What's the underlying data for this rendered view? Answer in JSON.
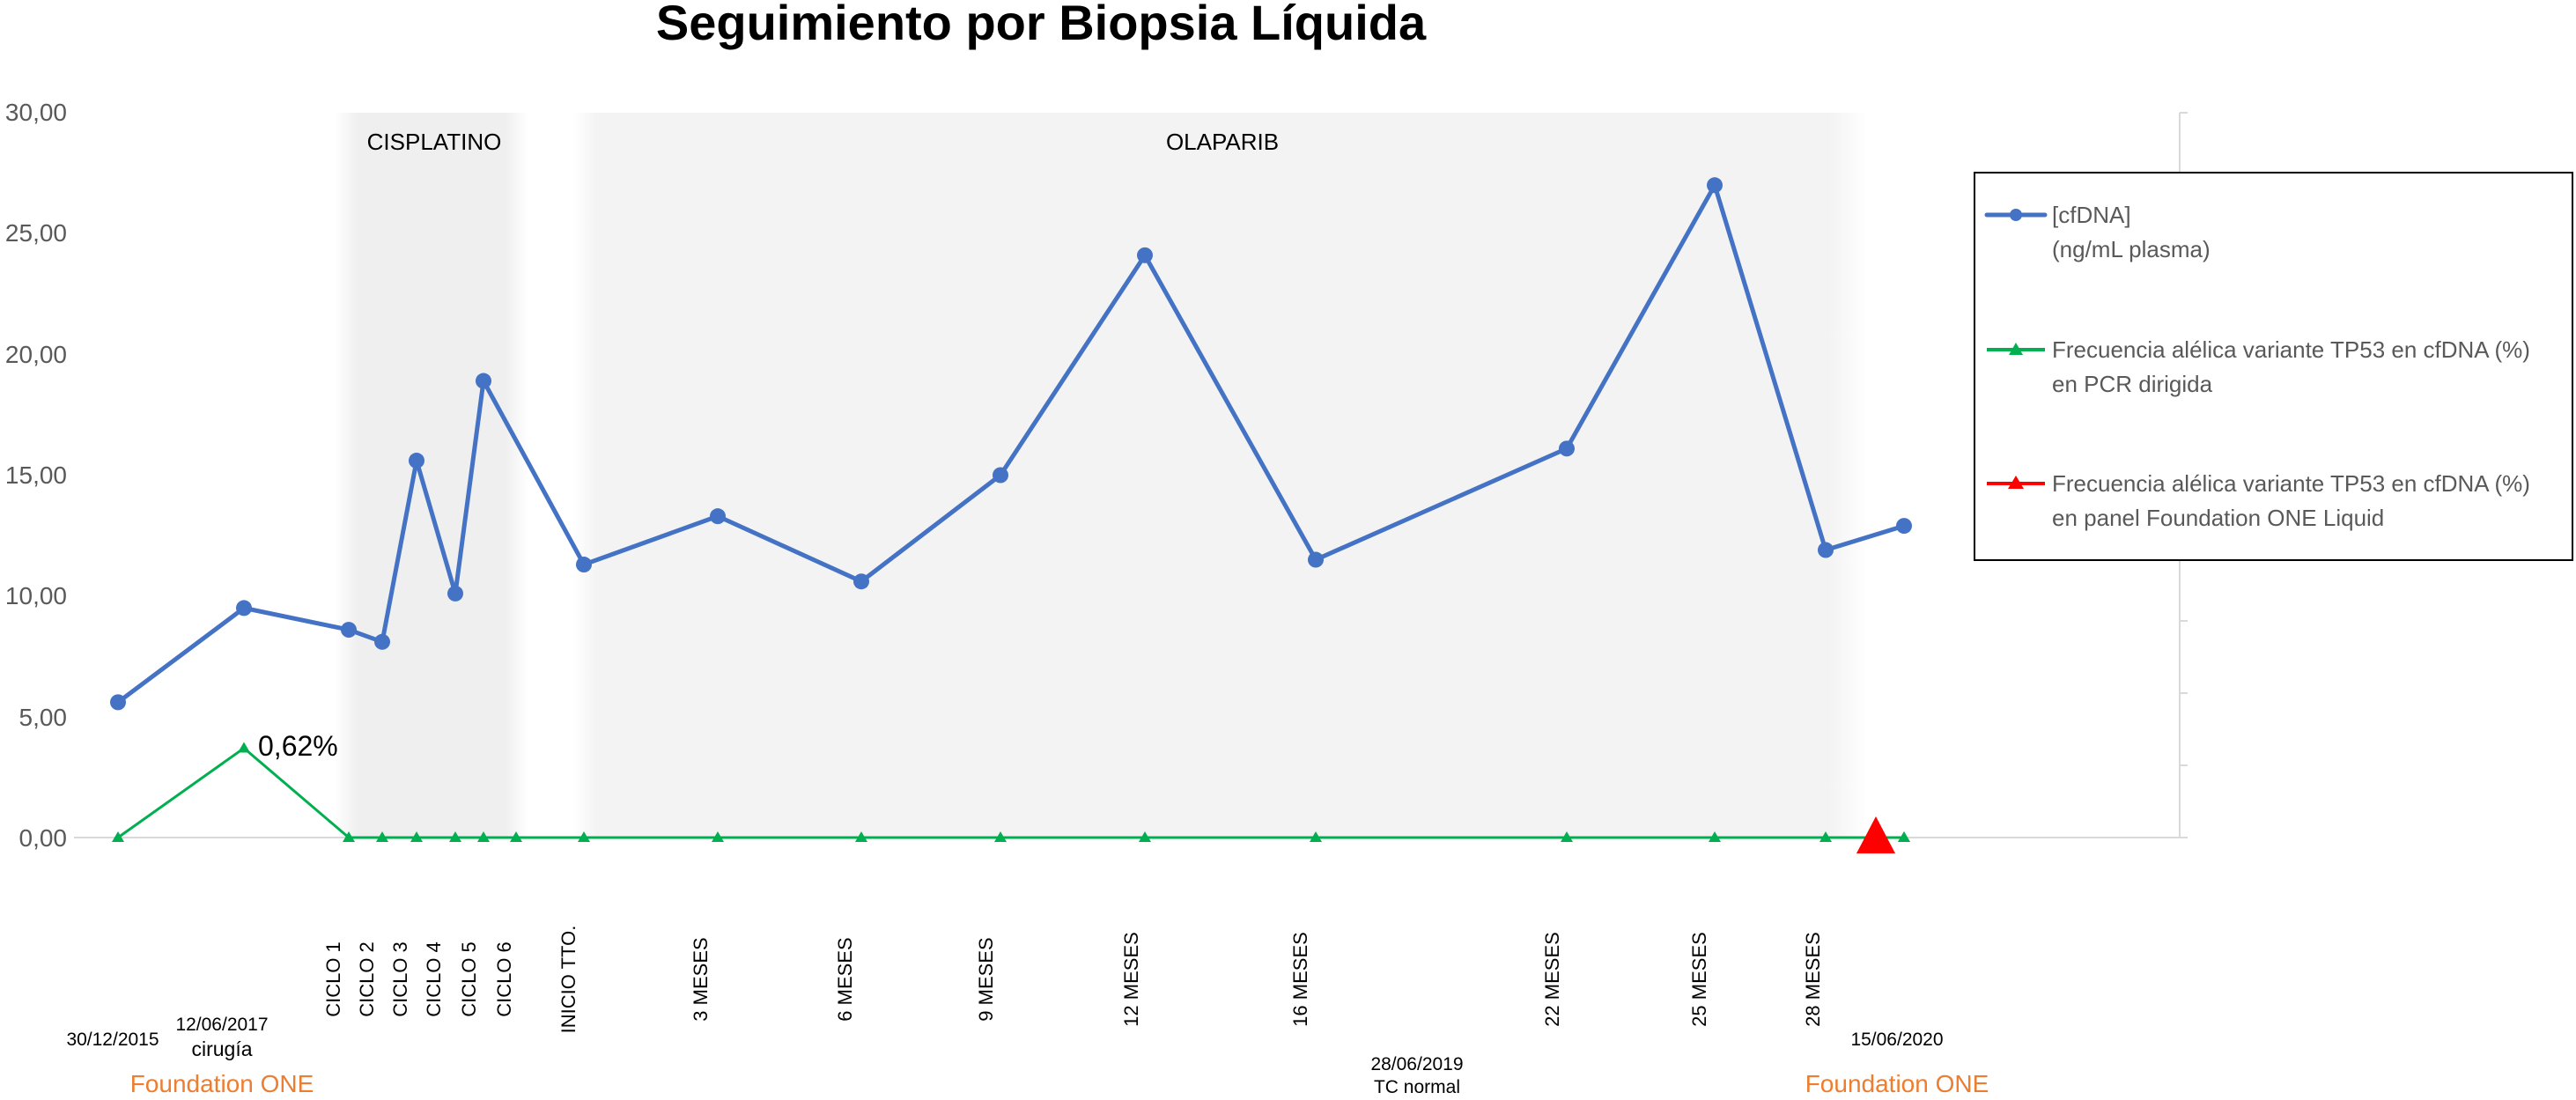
{
  "chart_data": {
    "type": "line",
    "title": "Seguimiento por Biopsia Líquida",
    "y_ticks": [
      "30,00",
      "25,00",
      "20,00",
      "15,00",
      "10,00",
      "5,00",
      "0,00"
    ],
    "ylim": [
      0,
      30
    ],
    "grid": false,
    "legend_position": "right",
    "shaded_regions": [
      {
        "label": "CISPLATINO"
      },
      {
        "label": "OLAPARIB"
      }
    ],
    "x_labels_vertical": [
      "CICLO 1",
      "CICLO 2",
      "CICLO 3",
      "CICLO 4",
      "CICLO 5",
      "CICLO 6",
      "INICIO TTO.",
      "3 MESES",
      "6 MESES",
      "9 MESES",
      "12 MESES",
      "16 MESES",
      "22 MESES",
      "25 MESES",
      "28 MESES"
    ],
    "x_labels_horizontal": [
      {
        "lines": [
          "30/12/2015"
        ]
      },
      {
        "lines": [
          "12/06/2017",
          "cirugía"
        ]
      },
      {
        "lines": [
          "28/06/2019",
          "TC normal"
        ]
      },
      {
        "lines": [
          "15/06/2020"
        ]
      }
    ],
    "foundation_labels": [
      "Foundation ONE",
      "Foundation ONE"
    ],
    "series": [
      {
        "name": "[cfDNA] (ng/mL plasma)",
        "legend_lines": [
          "[cfDNA]",
          "(ng/mL plasma)"
        ],
        "color": "#4472c4",
        "marker": "circle",
        "values": [
          5.6,
          9.5,
          8.6,
          8.1,
          15.6,
          10.1,
          18.9,
          11.3,
          13.3,
          10.6,
          15.0,
          24.1,
          11.5,
          16.1,
          27.0,
          11.9,
          12.9
        ]
      },
      {
        "name": "Frecuencia alélica variante TP53 en cfDNA (%) en PCR dirigida",
        "legend_lines": [
          "Frecuencia alélica variante TP53 en cfDNA (%)",
          "en PCR dirigida"
        ],
        "color": "#00b050",
        "marker": "triangle",
        "values": [
          0,
          3.7,
          0,
          0,
          0,
          0,
          0,
          0,
          0,
          0,
          0,
          0,
          0,
          0,
          0,
          0,
          0,
          0,
          0
        ]
      },
      {
        "name": "Frecuencia alélica variante TP53 en cfDNA (%) en panel Foundation ONE Liquid",
        "legend_lines": [
          "Frecuencia alélica variante TP53 en cfDNA (%)",
          "en panel Foundation ONE Liquid"
        ],
        "color": "#ff0000",
        "marker": "triangle",
        "values": [
          0
        ]
      }
    ],
    "annotations": [
      {
        "text": "0,62%"
      }
    ]
  }
}
